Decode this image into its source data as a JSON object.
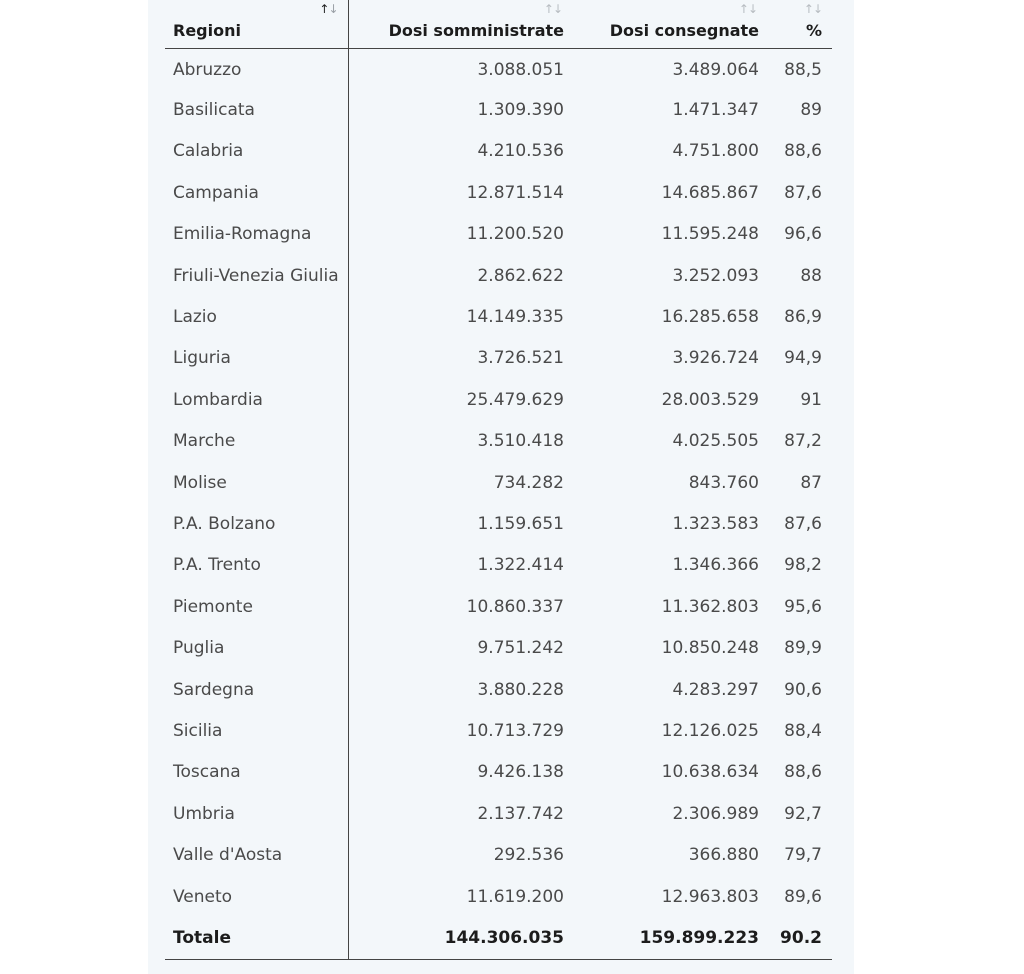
{
  "table": {
    "headers": [
      {
        "label": "Regioni",
        "sort_icon": "sort-arrows-icon",
        "active": true
      },
      {
        "label": "Dosi somministrate",
        "sort_icon": "sort-arrows-icon",
        "active": false
      },
      {
        "label": "Dosi consegnate",
        "sort_icon": "sort-arrows-icon",
        "active": false
      },
      {
        "label": "%",
        "sort_icon": "sort-arrows-icon",
        "active": false
      }
    ],
    "rows": [
      {
        "region": "Abruzzo",
        "administered": "3.088.051",
        "delivered": "3.489.064",
        "pct": "88,5"
      },
      {
        "region": "Basilicata",
        "administered": "1.309.390",
        "delivered": "1.471.347",
        "pct": "89"
      },
      {
        "region": "Calabria",
        "administered": "4.210.536",
        "delivered": "4.751.800",
        "pct": "88,6"
      },
      {
        "region": "Campania",
        "administered": "12.871.514",
        "delivered": "14.685.867",
        "pct": "87,6"
      },
      {
        "region": "Emilia-Romagna",
        "administered": "11.200.520",
        "delivered": "11.595.248",
        "pct": "96,6"
      },
      {
        "region": "Friuli-Venezia Giulia",
        "administered": "2.862.622",
        "delivered": "3.252.093",
        "pct": "88"
      },
      {
        "region": "Lazio",
        "administered": "14.149.335",
        "delivered": "16.285.658",
        "pct": "86,9"
      },
      {
        "region": "Liguria",
        "administered": "3.726.521",
        "delivered": "3.926.724",
        "pct": "94,9"
      },
      {
        "region": "Lombardia",
        "administered": "25.479.629",
        "delivered": "28.003.529",
        "pct": "91"
      },
      {
        "region": "Marche",
        "administered": "3.510.418",
        "delivered": "4.025.505",
        "pct": "87,2"
      },
      {
        "region": "Molise",
        "administered": "734.282",
        "delivered": "843.760",
        "pct": "87"
      },
      {
        "region": "P.A. Bolzano",
        "administered": "1.159.651",
        "delivered": "1.323.583",
        "pct": "87,6"
      },
      {
        "region": "P.A. Trento",
        "administered": "1.322.414",
        "delivered": "1.346.366",
        "pct": "98,2"
      },
      {
        "region": "Piemonte",
        "administered": "10.860.337",
        "delivered": "11.362.803",
        "pct": "95,6"
      },
      {
        "region": "Puglia",
        "administered": "9.751.242",
        "delivered": "10.850.248",
        "pct": "89,9"
      },
      {
        "region": "Sardegna",
        "administered": "3.880.228",
        "delivered": "4.283.297",
        "pct": "90,6"
      },
      {
        "region": "Sicilia",
        "administered": "10.713.729",
        "delivered": "12.126.025",
        "pct": "88,4"
      },
      {
        "region": "Toscana",
        "administered": "9.426.138",
        "delivered": "10.638.634",
        "pct": "88,6"
      },
      {
        "region": "Umbria",
        "administered": "2.137.742",
        "delivered": "2.306.989",
        "pct": "92,7"
      },
      {
        "region": "Valle d'Aosta",
        "administered": "292.536",
        "delivered": "366.880",
        "pct": "79,7"
      },
      {
        "region": "Veneto",
        "administered": "11.619.200",
        "delivered": "12.963.803",
        "pct": "89,6"
      }
    ],
    "total": {
      "label": "Totale",
      "administered": "144.306.035",
      "delivered": "159.899.223",
      "pct": "90.2"
    }
  },
  "colors": {
    "panel_background": "#f3f7fa",
    "text": "#4a4a4a",
    "header_text": "#1c1c1c",
    "rule": "#444444"
  }
}
